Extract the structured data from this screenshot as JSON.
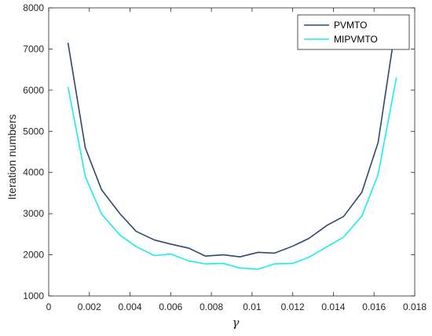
{
  "chart_data": {
    "type": "line",
    "title": "",
    "xlabel": "γ",
    "ylabel": "Iteration numbers",
    "xlim": [
      0,
      0.018
    ],
    "ylim": [
      1000,
      8000
    ],
    "x_ticks": [
      "0",
      "0.002",
      "0.004",
      "0.006",
      "0.008",
      "0.01",
      "0.012",
      "0.014",
      "0.016",
      "0.018"
    ],
    "y_ticks": [
      "1000",
      "2000",
      "3000",
      "4000",
      "5000",
      "6000",
      "7000",
      "8000"
    ],
    "grid": false,
    "legend_position": "top-right",
    "x": [
      0.00095,
      0.0018,
      0.0026,
      0.0035,
      0.0043,
      0.0052,
      0.006,
      0.0069,
      0.0077,
      0.0086,
      0.0094,
      0.0103,
      0.0111,
      0.012,
      0.0128,
      0.0137,
      0.0145,
      0.0154,
      0.0162,
      0.0171
    ],
    "series": [
      {
        "name": "PVMTO",
        "color": "#2b4a6e",
        "values": [
          7150,
          4600,
          3580,
          3000,
          2570,
          2360,
          2260,
          2160,
          1970,
          2000,
          1950,
          2060,
          2040,
          2210,
          2400,
          2720,
          2930,
          3520,
          4730,
          7680
        ]
      },
      {
        "name": "MIPVMTO",
        "color": "#17eef3",
        "values": [
          6080,
          3900,
          2990,
          2480,
          2200,
          1980,
          2020,
          1850,
          1780,
          1790,
          1680,
          1650,
          1780,
          1790,
          1940,
          2200,
          2430,
          2940,
          3950,
          6310
        ]
      }
    ]
  }
}
